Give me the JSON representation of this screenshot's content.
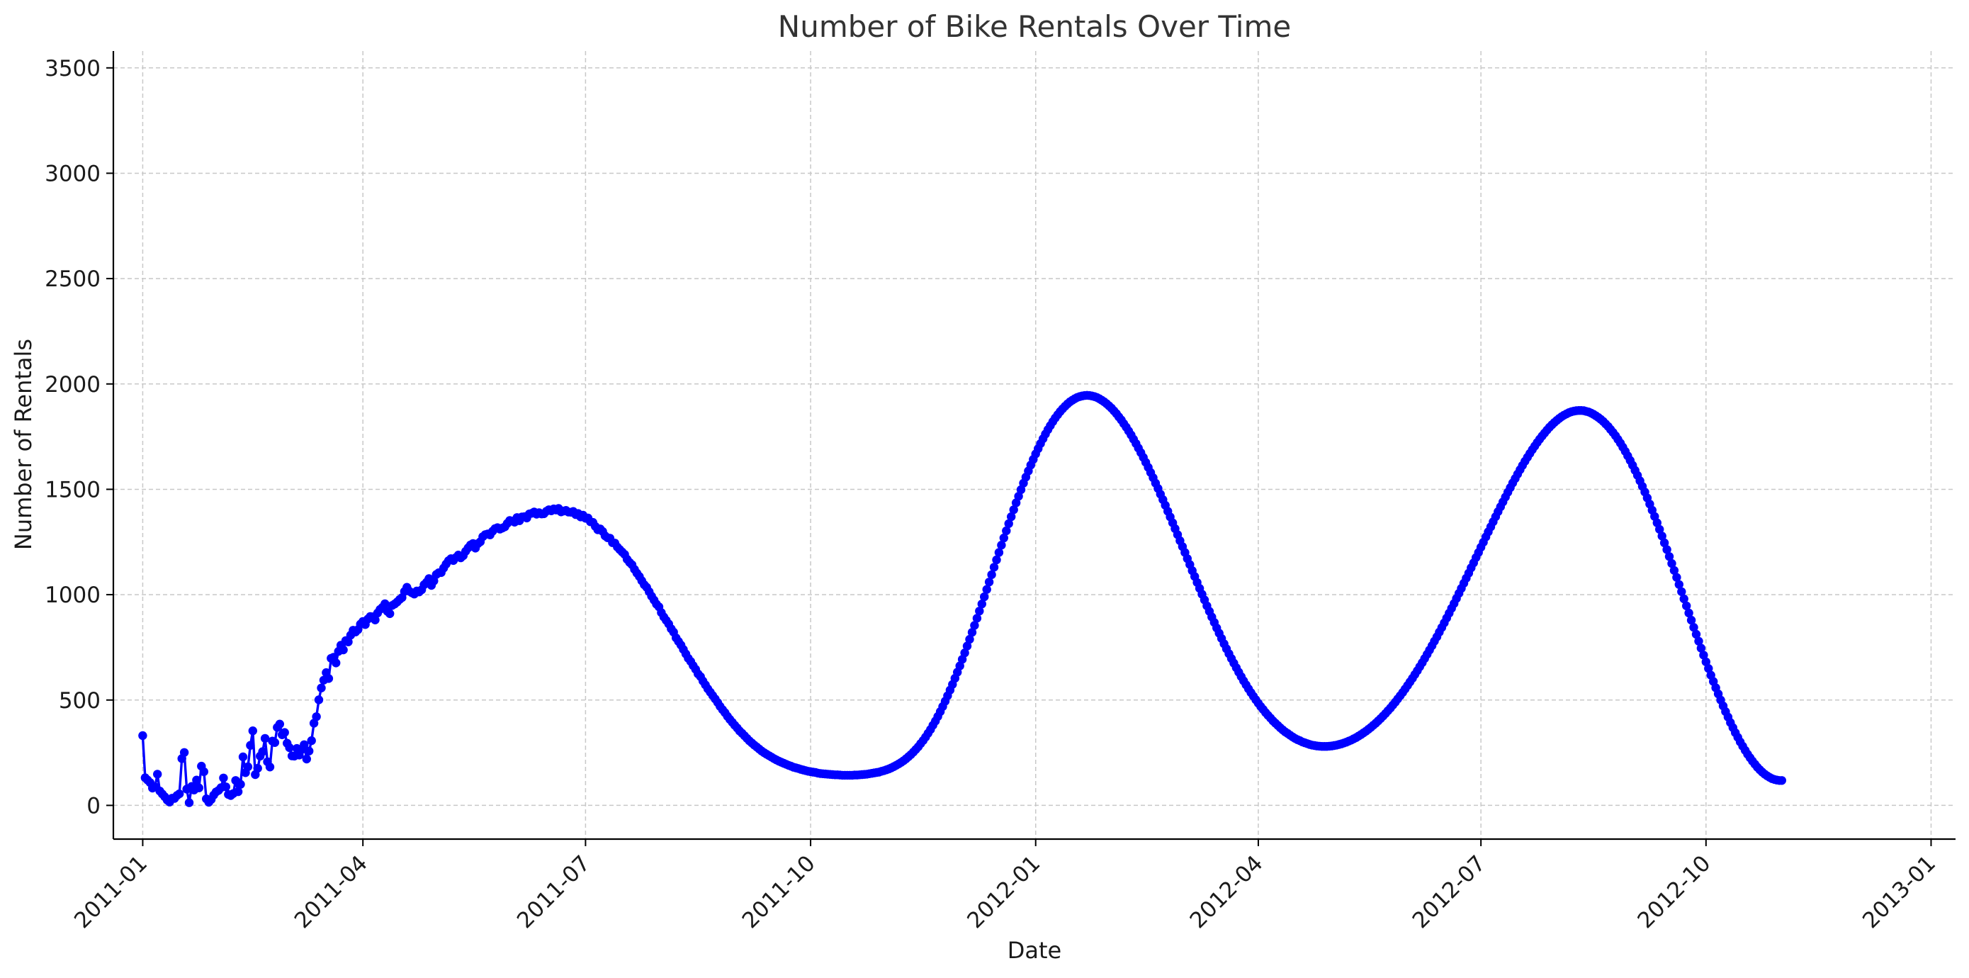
{
  "chart_data": {
    "type": "line",
    "title": "Number of Bike Rentals Over Time",
    "xlabel": "Date",
    "ylabel": "Number of Rentals",
    "xlim": [
      "2010-12-20",
      "2013-01-11"
    ],
    "ylim": [
      -160,
      3580
    ],
    "grid": true,
    "x_ticks": [
      "2011-01",
      "2011-04",
      "2011-07",
      "2011-10",
      "2012-01",
      "2012-04",
      "2012-07",
      "2012-10",
      "2013-01"
    ],
    "y_ticks": [
      0,
      500,
      1000,
      1500,
      2000,
      2500,
      3000,
      3500
    ],
    "series": [
      {
        "color": "#0000ff",
        "marker": "circle",
        "x_start": "2011-01-01",
        "x_step_days": 1,
        "values": [
          331,
          131,
          120,
          108,
          82,
          88,
          148,
          68,
          54,
          41,
          25,
          16,
          34,
          33,
          47,
          55,
          222,
          251,
          77,
          13,
          90,
          73,
          120,
          83,
          186,
          160,
          31,
          15,
          28,
          49,
          64,
          71,
          84,
          130,
          88,
          52,
          47,
          56,
          118,
          65,
          100,
          230,
          155,
          183,
          285,
          354,
          146,
          176,
          234,
          255,
          318,
          207,
          182,
          305,
          298,
          370,
          386,
          335,
          346,
          295,
          274,
          235,
          234,
          270,
          239,
          265,
          288,
          220,
          258,
          307,
          390,
          421,
          501,
          557,
          594,
          630,
          602,
          698,
          703,
          676,
          731,
          760,
          738,
          782,
          776,
          808,
          831,
          823,
          834,
          860,
          873,
          858,
          884,
          896,
          895,
          880,
          913,
          930,
          940,
          957,
          921,
          910,
          949,
          956,
          965,
          977,
          986,
          1015,
          1035,
          1016,
          1009,
          1003,
          1017,
          1013,
          1023,
          1047,
          1059,
          1076,
          1044,
          1065,
          1096,
          1104,
          1105,
          1126,
          1145,
          1161,
          1171,
          1162,
          1176,
          1188,
          1175,
          1185,
          1206,
          1222,
          1236,
          1243,
          1221,
          1242,
          1251,
          1275,
          1285,
          1288,
          1284,
          1301,
          1313,
          1318,
          1311,
          1316,
          1322,
          1338,
          1352,
          1349,
          1344,
          1366,
          1351,
          1369,
          1370,
          1364,
          1383,
          1386,
          1392,
          1382,
          1389,
          1383,
          1384,
          1396,
          1403,
          1398,
          1407,
          1402,
          1409,
          1393,
          1397,
          1400,
          1392,
          1391,
          1395,
          1380,
          1385,
          1369,
          1377,
          1363,
          1364,
          1346,
          1343,
          1324,
          1308,
          1312,
          1300,
          1279,
          1270,
          1268,
          1247,
          1245,
          1226,
          1214,
          1202,
          1191,
          1168,
          1153,
          1142,
          1120,
          1102,
          1086,
          1066,
          1047,
          1035,
          1014,
          993,
          974,
          955,
          942,
          915,
          894,
          878,
          861,
          838,
          822,
          795,
          778,
          761,
          740,
          719,
          698,
          683,
          663,
          646,
          624,
          611,
          590,
          572,
          553,
          537,
          521,
          505,
          488,
          470,
          454,
          440,
          423,
          408,
          394,
          380,
          367,
          353,
          342,
          330,
          318,
          306,
          296,
          286,
          277,
          267,
          258,
          250,
          243,
          236,
          229,
          222,
          216,
          210,
          205,
          200,
          195,
          190,
          186,
          181,
          178,
          175,
          171,
          168,
          165,
          162,
          160,
          158,
          156,
          153,
          151,
          150,
          149,
          148,
          147,
          146,
          145,
          145,
          144,
          143,
          143,
          143,
          143,
          143,
          144,
          144,
          145,
          146,
          147,
          148,
          150,
          152,
          154,
          156,
          158,
          162,
          165,
          169,
          173,
          178,
          184,
          190,
          197,
          204,
          212,
          221,
          231,
          241,
          253,
          265,
          278,
          293,
          308,
          324,
          342,
          360,
          380,
          400,
          422,
          445,
          469,
          494,
          520,
          547,
          574,
          603,
          632,
          662,
          693,
          724,
          756,
          788,
          821,
          854,
          888,
          922,
          956,
          990,
          1025,
          1060,
          1095,
          1130,
          1165,
          1200,
          1235,
          1269,
          1303,
          1337,
          1370,
          1403,
          1436,
          1467,
          1498,
          1529,
          1558,
          1587,
          1615,
          1642,
          1668,
          1693,
          1717,
          1740,
          1762,
          1783,
          1802,
          1821,
          1838,
          1854,
          1869,
          1882,
          1894,
          1905,
          1915,
          1923,
          1930,
          1936,
          1940,
          1943,
          1945,
          1946,
          1945,
          1943,
          1940,
          1936,
          1930,
          1923,
          1915,
          1906,
          1896,
          1885,
          1872,
          1859,
          1844,
          1829,
          1812,
          1795,
          1777,
          1758,
          1738,
          1717,
          1696,
          1674,
          1651,
          1628,
          1604,
          1580,
          1555,
          1529,
          1504,
          1477,
          1451,
          1424,
          1396,
          1369,
          1341,
          1313,
          1285,
          1256,
          1228,
          1200,
          1171,
          1143,
          1114,
          1086,
          1058,
          1030,
          1002,
          975,
          947,
          921,
          894,
          868,
          842,
          817,
          792,
          767,
          743,
          720,
          697,
          675,
          653,
          632,
          611,
          591,
          572,
          553,
          535,
          518,
          501,
          485,
          469,
          455,
          440,
          427,
          414,
          401,
          390,
          379,
          368,
          358,
          349,
          341,
          333,
          325,
          318,
          312,
          307,
          301,
          297,
          293,
          289,
          286,
          284,
          282,
          281,
          280,
          280,
          280,
          281,
          282,
          284,
          286,
          289,
          292,
          296,
          300,
          305,
          310,
          316,
          322,
          329,
          336,
          344,
          352,
          361,
          370,
          380,
          390,
          401,
          412,
          424,
          436,
          449,
          462,
          476,
          490,
          505,
          520,
          536,
          552,
          569,
          586,
          603,
          621,
          639,
          658,
          677,
          697,
          717,
          737,
          758,
          779,
          800,
          822,
          844,
          866,
          889,
          912,
          935,
          958,
          982,
          1006,
          1030,
          1054,
          1078,
          1102,
          1127,
          1151,
          1176,
          1200,
          1225,
          1249,
          1274,
          1298,
          1322,
          1346,
          1370,
          1394,
          1417,
          1440,
          1463,
          1486,
          1508,
          1530,
          1551,
          1572,
          1593,
          1613,
          1633,
          1652,
          1670,
          1688,
          1705,
          1722,
          1738,
          1753,
          1767,
          1781,
          1794,
          1806,
          1817,
          1827,
          1836,
          1845,
          1852,
          1858,
          1864,
          1868,
          1871,
          1873,
          1874,
          1874,
          1873,
          1870,
          1867,
          1862,
          1856,
          1849,
          1841,
          1832,
          1822,
          1810,
          1798,
          1784,
          1770,
          1754,
          1737,
          1719,
          1700,
          1680,
          1659,
          1637,
          1614,
          1590,
          1566,
          1540,
          1514,
          1487,
          1459,
          1430,
          1401,
          1371,
          1341,
          1310,
          1278,
          1246,
          1214,
          1181,
          1148,
          1115,
          1082,
          1048,
          1014,
          980,
          947,
          913,
          879,
          845,
          812,
          779,
          746,
          713,
          681,
          650,
          618,
          588,
          558,
          529,
          500,
          472,
          445,
          419,
          393,
          369,
          345,
          323,
          301,
          281,
          261,
          243,
          226,
          210,
          195,
          181,
          169,
          158,
          148,
          140,
          133,
          127,
          123,
          120,
          118,
          118
        ]
      }
    ]
  }
}
